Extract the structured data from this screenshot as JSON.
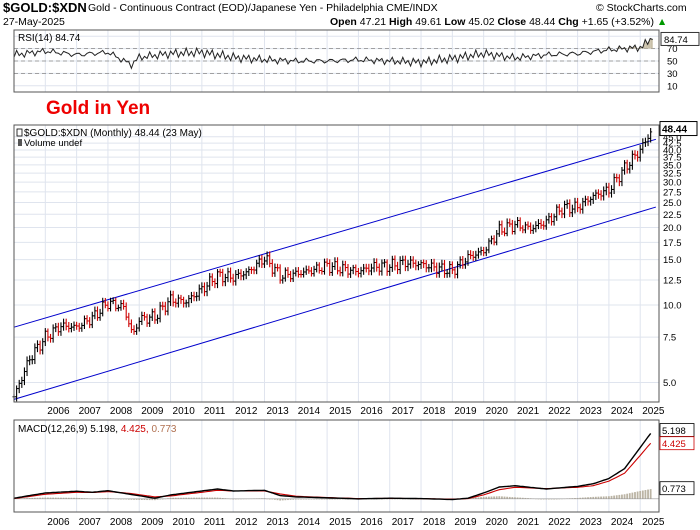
{
  "header": {
    "symbol": "$GOLD:$XDN",
    "description": "Gold - Continuous Contract (EOD)/Japanese Yen - Philadelphia  CME/INDX",
    "source": "© StockCharts.com",
    "date": "27-May-2025",
    "quote": {
      "open_label": "Open",
      "open": "47.21",
      "high_label": "High",
      "high": "49.61",
      "low_label": "Low",
      "low": "45.02",
      "close_label": "Close",
      "close": "48.44",
      "chg_label": "Chg",
      "chg": "+1.65 (+3.52%)",
      "up_symbol": "▲"
    }
  },
  "annotation": "Gold in Yen",
  "colors": {
    "grid": "#dfe4ee",
    "panel_border": "#555555",
    "up_bar": "#000000",
    "down_bar": "#cc0000",
    "channel": "#0000cc",
    "rsi_line": "#222222",
    "rsi_fill": "#c8bfa8",
    "macd_line": "#000000",
    "signal_line": "#cc0000",
    "histogram": "#bbb4a4",
    "annotation": "#ee0000",
    "label_red": "#cc0000"
  },
  "chart_data": [
    {
      "type": "line",
      "panel": "RSI",
      "label": "RSI(14)",
      "label_value": "84.74",
      "last_value": "84.74",
      "y_ticks": [
        10,
        30,
        50,
        70,
        90
      ],
      "overbought": 70,
      "oversold": 30,
      "ylim": [
        0,
        100
      ],
      "x": [
        "2005",
        "2006",
        "2007",
        "2008",
        "2008.75",
        "2009",
        "2010",
        "2011",
        "2012",
        "2013",
        "2014",
        "2015",
        "2016",
        "2017",
        "2018",
        "2019",
        "2020",
        "2021",
        "2022",
        "2023",
        "2024",
        "2025",
        "2025.4"
      ],
      "values": [
        60,
        66,
        60,
        64,
        44,
        56,
        62,
        64,
        56,
        52,
        50,
        50,
        52,
        50,
        48,
        54,
        62,
        55,
        60,
        62,
        68,
        72,
        84.74
      ]
    },
    {
      "type": "candlestick",
      "panel": "Price",
      "label": "$GOLD:$XDN (Monthly) 48.44 (23 May)",
      "volume_label": "Volume undef",
      "last_value": "48.44",
      "scale": "log",
      "y_ticks": [
        5.0,
        7.5,
        10.0,
        12.5,
        15.0,
        17.5,
        20.0,
        22.5,
        25.0,
        27.5,
        30.0,
        32.5,
        35.0,
        37.5,
        40.0,
        42.5,
        45.0
      ],
      "ylim": [
        4.2,
        50
      ],
      "x_labels": [
        "2006",
        "2007",
        "2008",
        "2009",
        "2010",
        "2011",
        "2012",
        "2013",
        "2014",
        "2015",
        "2016",
        "2017",
        "2018",
        "2019",
        "2020",
        "2021",
        "2022",
        "2023",
        "2024",
        "2025"
      ],
      "x": [
        "2005.0",
        "2005.5",
        "2006.0",
        "2006.5",
        "2007.0",
        "2007.5",
        "2008.0",
        "2008.5",
        "2008.8",
        "2009.0",
        "2009.5",
        "2010.0",
        "2010.5",
        "2011.0",
        "2011.5",
        "2012.0",
        "2012.5",
        "2013.0",
        "2013.5",
        "2014.0",
        "2014.5",
        "2015.0",
        "2015.5",
        "2016.0",
        "2016.5",
        "2017.0",
        "2017.5",
        "2018.0",
        "2018.5",
        "2019.0",
        "2019.5",
        "2020.0",
        "2020.5",
        "2021.0",
        "2021.5",
        "2022.0",
        "2022.5",
        "2023.0",
        "2023.5",
        "2024.0",
        "2024.5",
        "2025.0",
        "2025.4"
      ],
      "values": [
        4.4,
        6.2,
        7.5,
        8.3,
        8.2,
        8.9,
        10.2,
        9.8,
        7.6,
        8.8,
        9.0,
        10.5,
        10.3,
        11.5,
        13.0,
        12.8,
        13.5,
        15.2,
        13.0,
        13.2,
        13.6,
        14.2,
        13.8,
        13.5,
        14.1,
        14.2,
        14.6,
        14.4,
        13.9,
        13.6,
        15.3,
        16.2,
        19.5,
        20.5,
        19.8,
        21.0,
        23.8,
        24.0,
        26.5,
        28.0,
        34.0,
        40.0,
        48.44
      ],
      "channel": {
        "upper": {
          "x": [
            "2005",
            "2025.5"
          ],
          "y": [
            8.2,
            44.0
          ]
        },
        "lower": {
          "x": [
            "2005",
            "2025.5"
          ],
          "y": [
            4.3,
            24.0
          ]
        }
      }
    },
    {
      "type": "line",
      "panel": "MACD",
      "label_prefix": "MACD(12,26,9)",
      "label_macd": "5.198,",
      "label_signal": "4.425,",
      "label_hist": "0.773",
      "tag_macd": "5.198",
      "tag_signal": "4.425",
      "tag_hist": "0.773",
      "ylim": [
        -1,
        6
      ],
      "x": [
        "2005",
        "2006",
        "2007",
        "2007.5",
        "2008",
        "2008.7",
        "2009.5",
        "2010",
        "2011",
        "2011.5",
        "2012",
        "2013",
        "2013.5",
        "2014",
        "2015",
        "2016",
        "2017",
        "2018",
        "2019",
        "2019.5",
        "2020",
        "2020.5",
        "2021",
        "2022",
        "2023",
        "2023.5",
        "2024",
        "2024.5",
        "2025",
        "2025.4"
      ],
      "series": [
        {
          "name": "MACD",
          "values": [
            0.05,
            0.45,
            0.58,
            0.5,
            0.62,
            0.35,
            0.05,
            0.3,
            0.6,
            0.75,
            0.6,
            0.65,
            0.25,
            0.15,
            0.08,
            0.0,
            0.05,
            0.02,
            -0.05,
            0.05,
            0.45,
            0.9,
            1.0,
            0.75,
            0.95,
            1.15,
            1.55,
            2.3,
            3.9,
            5.198
          ]
        },
        {
          "name": "Signal",
          "values": [
            0.02,
            0.35,
            0.5,
            0.48,
            0.55,
            0.42,
            0.15,
            0.22,
            0.5,
            0.65,
            0.6,
            0.6,
            0.38,
            0.2,
            0.1,
            0.02,
            0.04,
            0.02,
            -0.02,
            0.02,
            0.3,
            0.7,
            0.88,
            0.78,
            0.88,
            1.0,
            1.35,
            1.95,
            3.3,
            4.425
          ]
        },
        {
          "name": "Histogram",
          "values": [
            0.03,
            0.1,
            0.08,
            0.02,
            0.07,
            -0.07,
            -0.1,
            0.08,
            0.1,
            0.1,
            0.0,
            0.05,
            -0.13,
            -0.05,
            -0.02,
            -0.02,
            0.01,
            0.0,
            -0.03,
            0.03,
            0.15,
            0.2,
            0.12,
            -0.03,
            0.07,
            0.15,
            0.2,
            0.35,
            0.6,
            0.773
          ]
        }
      ],
      "x_labels": [
        "2006",
        "2007",
        "2008",
        "2009",
        "2010",
        "2011",
        "2012",
        "2013",
        "2014",
        "2015",
        "2016",
        "2017",
        "2018",
        "2019",
        "2020",
        "2021",
        "2022",
        "2023",
        "2024",
        "2025"
      ]
    }
  ]
}
